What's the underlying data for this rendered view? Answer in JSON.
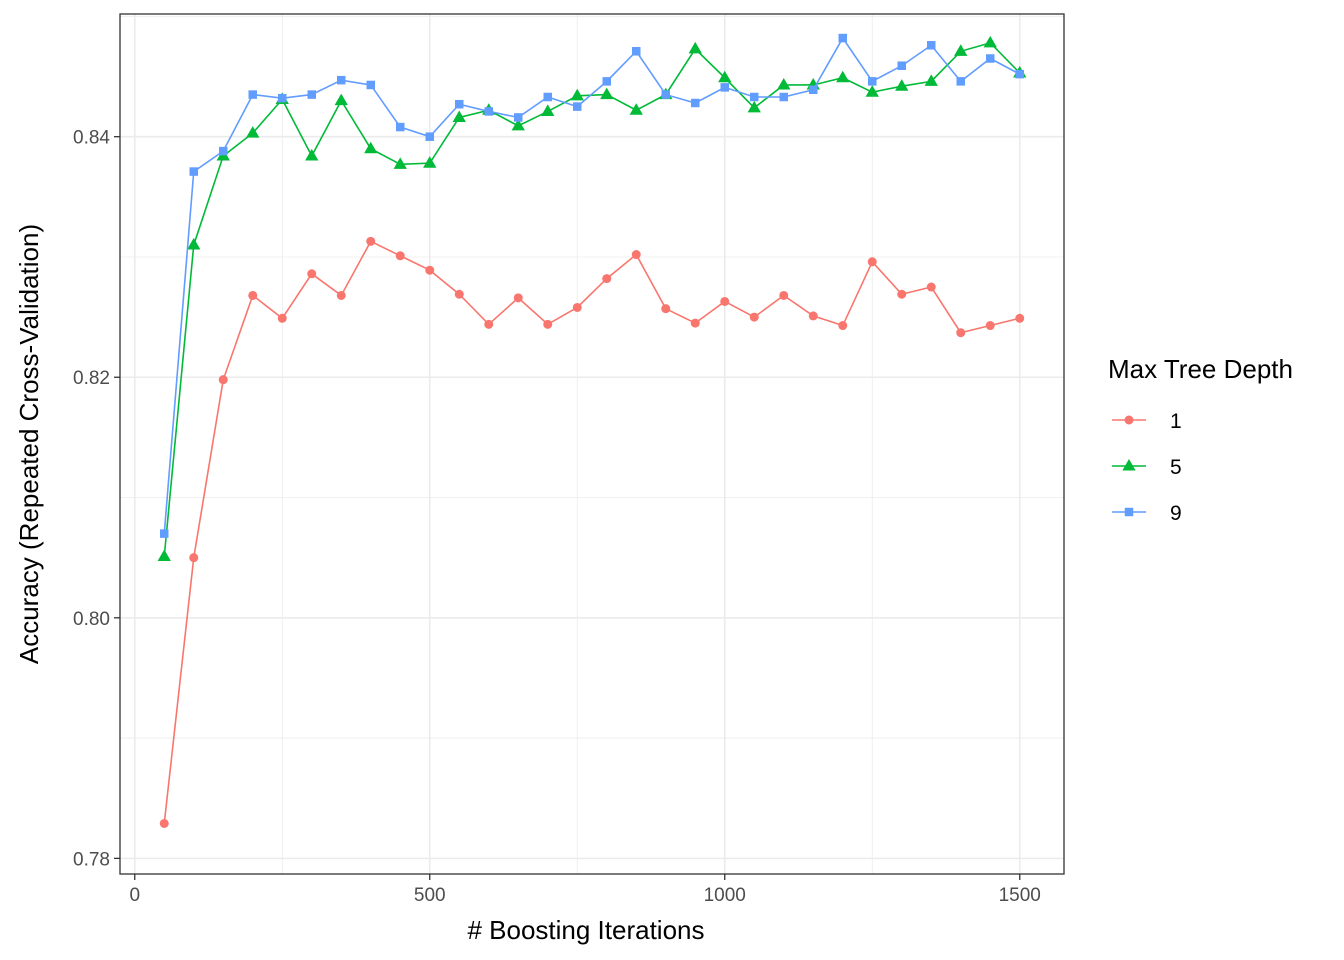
{
  "chart_data": {
    "type": "line",
    "xlabel": "# Boosting Iterations",
    "ylabel": "Accuracy (Repeated Cross-Validation)",
    "xlim": [
      -25,
      1575
    ],
    "ylim": [
      0.7787,
      0.8502
    ],
    "x_ticks": [
      0,
      500,
      1000,
      1500
    ],
    "x_tick_labels": [
      "0",
      "500",
      "1000",
      "1500"
    ],
    "y_ticks": [
      0.78,
      0.8,
      0.82,
      0.84
    ],
    "y_tick_labels": [
      "0.78",
      "0.80",
      "0.82",
      "0.84"
    ],
    "grid": true,
    "legend": {
      "title": "Max Tree Depth",
      "position": "right"
    },
    "x": [
      50,
      100,
      150,
      200,
      250,
      300,
      350,
      400,
      450,
      500,
      550,
      600,
      650,
      700,
      750,
      800,
      850,
      900,
      950,
      1000,
      1050,
      1100,
      1150,
      1200,
      1250,
      1300,
      1350,
      1400,
      1450,
      1500
    ],
    "series": [
      {
        "name": "1",
        "color": "#F8766D",
        "marker": "circle",
        "values": [
          0.7829,
          0.805,
          0.8198,
          0.8268,
          0.8249,
          0.8286,
          0.8268,
          0.8313,
          0.8301,
          0.8289,
          0.8269,
          0.8244,
          0.8266,
          0.8244,
          0.8258,
          0.8282,
          0.8302,
          0.8257,
          0.8245,
          0.8263,
          0.825,
          0.8268,
          0.8251,
          0.8243,
          0.8296,
          0.8269,
          0.8275,
          0.8237,
          0.8243,
          0.8249
        ]
      },
      {
        "name": "5",
        "color": "#00BA38",
        "marker": "triangle",
        "values": [
          0.8051,
          0.831,
          0.8384,
          0.8403,
          0.8431,
          0.8384,
          0.843,
          0.839,
          0.8377,
          0.8378,
          0.8416,
          0.8422,
          0.8409,
          0.8421,
          0.8434,
          0.8435,
          0.8422,
          0.8435,
          0.8473,
          0.8449,
          0.8424,
          0.8443,
          0.8443,
          0.8449,
          0.8437,
          0.8442,
          0.8446,
          0.8471,
          0.8478,
          0.8453
        ]
      },
      {
        "name": "9",
        "color": "#619CFF",
        "marker": "square",
        "values": [
          0.807,
          0.8371,
          0.8388,
          0.8435,
          0.8432,
          0.8435,
          0.8447,
          0.8443,
          0.8408,
          0.84,
          0.8427,
          0.8421,
          0.8416,
          0.8433,
          0.8425,
          0.8446,
          0.8471,
          0.8435,
          0.8428,
          0.8441,
          0.8433,
          0.8433,
          0.8439,
          0.8482,
          0.8446,
          0.8459,
          0.8476,
          0.8446,
          0.8465,
          0.8452
        ]
      }
    ]
  }
}
